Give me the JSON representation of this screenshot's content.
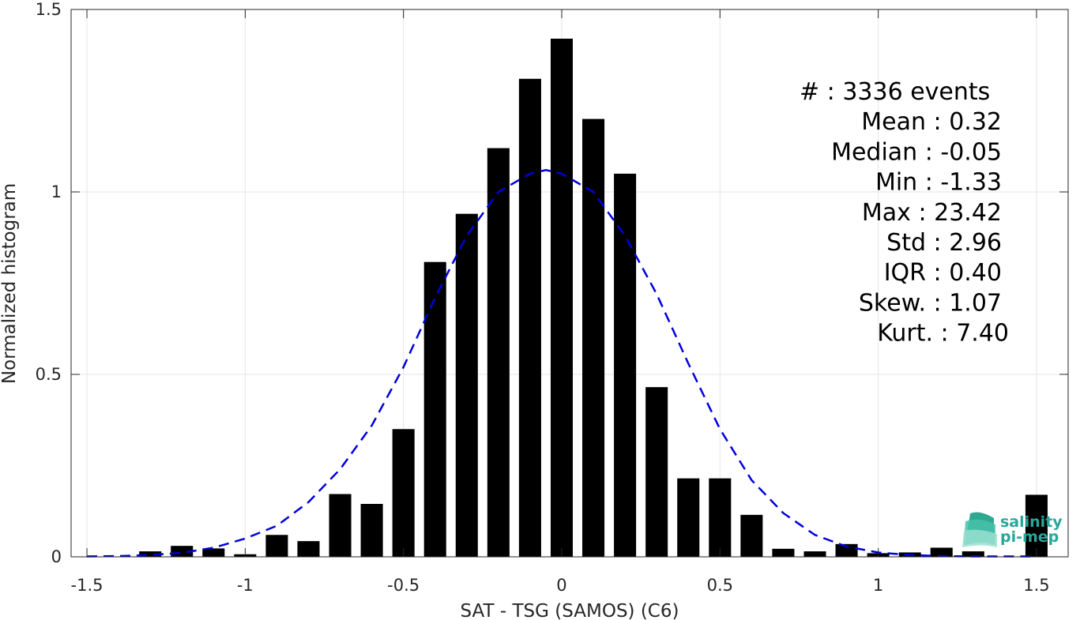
{
  "chart_data": {
    "type": "bar",
    "xlabel": "SAT - TSG (SAMOS) (C6)",
    "ylabel": "Normalized histogram",
    "xlim": [
      -1.55,
      1.6
    ],
    "ylim": [
      0,
      1.5
    ],
    "grid": true,
    "x_ticks": [
      -1.5,
      -1,
      -0.5,
      0,
      0.5,
      1,
      1.5
    ],
    "x_tick_labels": [
      "-1.5",
      "-1",
      "-0.5",
      "0",
      "0.5",
      "1",
      "1.5"
    ],
    "y_ticks": [
      0,
      0.5,
      1,
      1.5
    ],
    "y_tick_labels": [
      "0",
      "0.5",
      "1",
      "1.5"
    ],
    "bar_color": "#000000",
    "bar_width": 0.07,
    "bars": {
      "x": [
        -1.3,
        -1.2,
        -1.1,
        -1.0,
        -0.9,
        -0.8,
        -0.7,
        -0.6,
        -0.5,
        -0.4,
        -0.3,
        -0.2,
        -0.1,
        0.0,
        0.1,
        0.2,
        0.3,
        0.4,
        0.5,
        0.6,
        0.7,
        0.8,
        0.9,
        1.0,
        1.1,
        1.2,
        1.3,
        1.5
      ],
      "values": [
        0.015,
        0.03,
        0.023,
        0.007,
        0.06,
        0.043,
        0.172,
        0.145,
        0.35,
        0.808,
        0.94,
        1.12,
        1.31,
        1.42,
        1.2,
        1.05,
        0.465,
        0.215,
        0.215,
        0.115,
        0.022,
        0.015,
        0.035,
        0.01,
        0.012,
        0.025,
        0.015,
        0.17
      ]
    },
    "fit_curve": {
      "style": "dashed",
      "color": "#0000dd",
      "x": [
        -1.5,
        -1.4,
        -1.3,
        -1.2,
        -1.1,
        -1.0,
        -0.9,
        -0.8,
        -0.7,
        -0.6,
        -0.5,
        -0.4,
        -0.3,
        -0.2,
        -0.1,
        -0.05,
        0.0,
        0.1,
        0.2,
        0.3,
        0.4,
        0.5,
        0.6,
        0.7,
        0.8,
        0.9,
        1.0,
        1.1,
        1.2,
        1.3,
        1.4,
        1.5
      ],
      "y": [
        0.001,
        0.002,
        0.005,
        0.011,
        0.025,
        0.05,
        0.085,
        0.15,
        0.24,
        0.36,
        0.52,
        0.71,
        0.88,
        1.0,
        1.05,
        1.06,
        1.05,
        1.0,
        0.88,
        0.72,
        0.53,
        0.35,
        0.21,
        0.12,
        0.06,
        0.028,
        0.012,
        0.005,
        0.002,
        0.001,
        0.001,
        0.001
      ]
    },
    "annotations": [
      "#  : 3336 events",
      "Mean : 0.32",
      "Median : -0.05",
      "Min : -1.33",
      "Max : 23.42",
      "Std : 2.96",
      "IQR : 0.40",
      "Skew. : 1.07",
      "Kurt. : 7.40"
    ]
  },
  "logo": {
    "line1": "salinity",
    "line2": "pi-mep",
    "color": "#27a79a"
  }
}
